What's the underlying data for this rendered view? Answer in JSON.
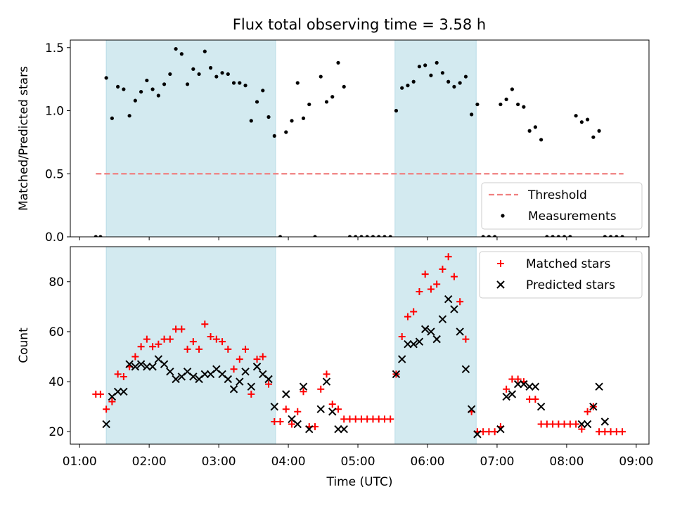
{
  "title": "Flux total observing time = 3.58 h",
  "colors": {
    "shade": "#d3eaf0",
    "shade_edge": "#b9dbe6",
    "threshold": "#f08080",
    "matched": "#ff0000",
    "predicted": "#000000"
  },
  "chart_data": [
    {
      "type": "scatter",
      "ylabel": "Matched/Predicted stars",
      "ylim": [
        0,
        1.56
      ],
      "yticks": [
        "0.0",
        "0.5",
        "1.0",
        "1.5"
      ],
      "xlim": [
        "00:52",
        "09:11"
      ],
      "xticks": [
        "01:00",
        "02:00",
        "03:00",
        "04:00",
        "05:00",
        "06:00",
        "07:00",
        "08:00",
        "09:00"
      ],
      "shaded_intervals": [
        [
          "01:23",
          "03:49"
        ],
        [
          "05:32",
          "06:42"
        ]
      ],
      "threshold": {
        "value": 0.5,
        "x_range": [
          "01:14",
          "08:49"
        ]
      },
      "legend": {
        "position": "lower right",
        "entries": [
          "Threshold",
          "Measurements"
        ]
      },
      "series": [
        {
          "name": "Measurements",
          "points": [
            [
              "01:14",
              0
            ],
            [
              "01:18",
              0
            ],
            [
              "01:23",
              1.26
            ],
            [
              "01:28",
              0.94
            ],
            [
              "01:33",
              1.19
            ],
            [
              "01:38",
              1.17
            ],
            [
              "01:43",
              0.96
            ],
            [
              "01:48",
              1.08
            ],
            [
              "01:53",
              1.15
            ],
            [
              "01:58",
              1.24
            ],
            [
              "02:03",
              1.17
            ],
            [
              "02:08",
              1.12
            ],
            [
              "02:13",
              1.21
            ],
            [
              "02:18",
              1.29
            ],
            [
              "02:23",
              1.49
            ],
            [
              "02:28",
              1.45
            ],
            [
              "02:33",
              1.21
            ],
            [
              "02:38",
              1.33
            ],
            [
              "02:43",
              1.29
            ],
            [
              "02:48",
              1.47
            ],
            [
              "02:53",
              1.34
            ],
            [
              "02:58",
              1.27
            ],
            [
              "03:03",
              1.3
            ],
            [
              "03:08",
              1.29
            ],
            [
              "03:13",
              1.22
            ],
            [
              "03:18",
              1.22
            ],
            [
              "03:23",
              1.2
            ],
            [
              "03:28",
              0.92
            ],
            [
              "03:33",
              1.07
            ],
            [
              "03:38",
              1.16
            ],
            [
              "03:43",
              0.95
            ],
            [
              "03:48",
              0.8
            ],
            [
              "03:53",
              0
            ],
            [
              "03:58",
              0.83
            ],
            [
              "04:03",
              0.92
            ],
            [
              "04:08",
              1.22
            ],
            [
              "04:13",
              0.94
            ],
            [
              "04:18",
              1.05
            ],
            [
              "04:23",
              0
            ],
            [
              "04:28",
              1.27
            ],
            [
              "04:33",
              1.07
            ],
            [
              "04:38",
              1.11
            ],
            [
              "04:43",
              1.38
            ],
            [
              "04:48",
              1.19
            ],
            [
              "04:53",
              0
            ],
            [
              "04:58",
              0
            ],
            [
              "05:03",
              0
            ],
            [
              "05:08",
              0
            ],
            [
              "05:13",
              0
            ],
            [
              "05:18",
              0
            ],
            [
              "05:23",
              0
            ],
            [
              "05:28",
              0
            ],
            [
              "05:33",
              1.0
            ],
            [
              "05:38",
              1.18
            ],
            [
              "05:43",
              1.2
            ],
            [
              "05:48",
              1.23
            ],
            [
              "05:53",
              1.35
            ],
            [
              "05:58",
              1.36
            ],
            [
              "06:03",
              1.28
            ],
            [
              "06:08",
              1.38
            ],
            [
              "06:13",
              1.3
            ],
            [
              "06:18",
              1.23
            ],
            [
              "06:23",
              1.19
            ],
            [
              "06:28",
              1.22
            ],
            [
              "06:33",
              1.27
            ],
            [
              "06:38",
              0.97
            ],
            [
              "06:43",
              1.05
            ],
            [
              "06:48",
              0
            ],
            [
              "06:53",
              0
            ],
            [
              "06:58",
              0
            ],
            [
              "07:03",
              1.05
            ],
            [
              "07:08",
              1.09
            ],
            [
              "07:13",
              1.17
            ],
            [
              "07:18",
              1.05
            ],
            [
              "07:23",
              1.03
            ],
            [
              "07:28",
              0.84
            ],
            [
              "07:33",
              0.87
            ],
            [
              "07:38",
              0.77
            ],
            [
              "07:43",
              0
            ],
            [
              "07:48",
              0
            ],
            [
              "07:53",
              0
            ],
            [
              "07:58",
              0
            ],
            [
              "08:03",
              0
            ],
            [
              "08:08",
              0.96
            ],
            [
              "08:13",
              0.91
            ],
            [
              "08:18",
              0.93
            ],
            [
              "08:23",
              0.79
            ],
            [
              "08:28",
              0.84
            ],
            [
              "08:33",
              0
            ],
            [
              "08:38",
              0
            ],
            [
              "08:43",
              0
            ],
            [
              "08:48",
              0
            ]
          ]
        }
      ]
    },
    {
      "type": "scatter",
      "ylabel": "Count",
      "xlabel": "Time (UTC)",
      "ylim": [
        15,
        94
      ],
      "yticks": [
        "20",
        "40",
        "60",
        "80"
      ],
      "xlim": [
        "00:52",
        "09:11"
      ],
      "xticks": [
        "01:00",
        "02:00",
        "03:00",
        "04:00",
        "05:00",
        "06:00",
        "07:00",
        "08:00",
        "09:00"
      ],
      "shaded_intervals": [
        [
          "01:23",
          "03:49"
        ],
        [
          "05:32",
          "06:42"
        ]
      ],
      "legend": {
        "position": "upper right",
        "entries": [
          "Matched stars",
          "Predicted stars"
        ]
      },
      "series": [
        {
          "name": "Matched stars",
          "marker": "plus",
          "points": [
            [
              "01:14",
              35
            ],
            [
              "01:18",
              35
            ],
            [
              "01:23",
              29
            ],
            [
              "01:28",
              32
            ],
            [
              "01:33",
              43
            ],
            [
              "01:38",
              42
            ],
            [
              "01:43",
              46
            ],
            [
              "01:48",
              50
            ],
            [
              "01:53",
              54
            ],
            [
              "01:58",
              57
            ],
            [
              "02:03",
              54
            ],
            [
              "02:08",
              55
            ],
            [
              "02:13",
              57
            ],
            [
              "02:18",
              57
            ],
            [
              "02:23",
              61
            ],
            [
              "02:28",
              61
            ],
            [
              "02:33",
              53
            ],
            [
              "02:38",
              56
            ],
            [
              "02:43",
              53
            ],
            [
              "02:48",
              63
            ],
            [
              "02:53",
              58
            ],
            [
              "02:58",
              57
            ],
            [
              "03:03",
              56
            ],
            [
              "03:08",
              53
            ],
            [
              "03:13",
              45
            ],
            [
              "03:18",
              49
            ],
            [
              "03:23",
              53
            ],
            [
              "03:28",
              35
            ],
            [
              "03:33",
              49
            ],
            [
              "03:38",
              50
            ],
            [
              "03:43",
              39
            ],
            [
              "03:48",
              24
            ],
            [
              "03:53",
              24
            ],
            [
              "03:58",
              29
            ],
            [
              "04:03",
              23
            ],
            [
              "04:08",
              28
            ],
            [
              "04:13",
              36
            ],
            [
              "04:18",
              22
            ],
            [
              "04:23",
              22
            ],
            [
              "04:28",
              37
            ],
            [
              "04:33",
              43
            ],
            [
              "04:38",
              31
            ],
            [
              "04:43",
              29
            ],
            [
              "04:48",
              25
            ],
            [
              "04:53",
              25
            ],
            [
              "04:58",
              25
            ],
            [
              "05:03",
              25
            ],
            [
              "05:08",
              25
            ],
            [
              "05:13",
              25
            ],
            [
              "05:18",
              25
            ],
            [
              "05:23",
              25
            ],
            [
              "05:28",
              25
            ],
            [
              "05:33",
              43
            ],
            [
              "05:38",
              58
            ],
            [
              "05:43",
              66
            ],
            [
              "05:48",
              68
            ],
            [
              "05:53",
              76
            ],
            [
              "05:58",
              83
            ],
            [
              "06:03",
              77
            ],
            [
              "06:08",
              79
            ],
            [
              "06:13",
              85
            ],
            [
              "06:18",
              90
            ],
            [
              "06:23",
              82
            ],
            [
              "06:28",
              72
            ],
            [
              "06:33",
              57
            ],
            [
              "06:38",
              28
            ],
            [
              "06:43",
              20
            ],
            [
              "06:48",
              20
            ],
            [
              "06:53",
              20
            ],
            [
              "06:58",
              20
            ],
            [
              "07:03",
              22
            ],
            [
              "07:08",
              37
            ],
            [
              "07:13",
              41
            ],
            [
              "07:18",
              41
            ],
            [
              "07:23",
              40
            ],
            [
              "07:28",
              33
            ],
            [
              "07:33",
              33
            ],
            [
              "07:38",
              23
            ],
            [
              "07:43",
              23
            ],
            [
              "07:48",
              23
            ],
            [
              "07:53",
              23
            ],
            [
              "07:58",
              23
            ],
            [
              "08:03",
              23
            ],
            [
              "08:08",
              23
            ],
            [
              "08:13",
              21
            ],
            [
              "08:18",
              28
            ],
            [
              "08:23",
              30
            ],
            [
              "08:28",
              20
            ],
            [
              "08:33",
              20
            ],
            [
              "08:38",
              20
            ],
            [
              "08:43",
              20
            ],
            [
              "08:48",
              20
            ]
          ]
        },
        {
          "name": "Predicted stars",
          "marker": "x",
          "points": [
            [
              "01:23",
              23
            ],
            [
              "01:28",
              34
            ],
            [
              "01:33",
              36
            ],
            [
              "01:38",
              36
            ],
            [
              "01:43",
              47
            ],
            [
              "01:48",
              46
            ],
            [
              "01:53",
              47
            ],
            [
              "01:58",
              46
            ],
            [
              "02:03",
              46
            ],
            [
              "02:08",
              49
            ],
            [
              "02:13",
              47
            ],
            [
              "02:18",
              44
            ],
            [
              "02:23",
              41
            ],
            [
              "02:28",
              42
            ],
            [
              "02:33",
              44
            ],
            [
              "02:38",
              42
            ],
            [
              "02:43",
              41
            ],
            [
              "02:48",
              43
            ],
            [
              "02:53",
              43
            ],
            [
              "02:58",
              45
            ],
            [
              "03:03",
              43
            ],
            [
              "03:08",
              41
            ],
            [
              "03:13",
              37
            ],
            [
              "03:18",
              40
            ],
            [
              "03:23",
              44
            ],
            [
              "03:28",
              38
            ],
            [
              "03:33",
              46
            ],
            [
              "03:38",
              43
            ],
            [
              "03:43",
              41
            ],
            [
              "03:48",
              30
            ],
            [
              "03:58",
              35
            ],
            [
              "04:03",
              25
            ],
            [
              "04:08",
              23
            ],
            [
              "04:13",
              38
            ],
            [
              "04:18",
              21
            ],
            [
              "04:28",
              29
            ],
            [
              "04:33",
              40
            ],
            [
              "04:38",
              28
            ],
            [
              "04:43",
              21
            ],
            [
              "04:48",
              21
            ],
            [
              "05:33",
              43
            ],
            [
              "05:38",
              49
            ],
            [
              "05:43",
              55
            ],
            [
              "05:48",
              55
            ],
            [
              "05:53",
              56
            ],
            [
              "05:58",
              61
            ],
            [
              "06:03",
              60
            ],
            [
              "06:08",
              57
            ],
            [
              "06:13",
              65
            ],
            [
              "06:18",
              73
            ],
            [
              "06:23",
              69
            ],
            [
              "06:28",
              60
            ],
            [
              "06:33",
              45
            ],
            [
              "06:38",
              29
            ],
            [
              "06:43",
              19
            ],
            [
              "07:03",
              21
            ],
            [
              "07:08",
              34
            ],
            [
              "07:13",
              35
            ],
            [
              "07:18",
              39
            ],
            [
              "07:23",
              39
            ],
            [
              "07:28",
              38
            ],
            [
              "07:33",
              38
            ],
            [
              "07:38",
              30
            ],
            [
              "08:13",
              23
            ],
            [
              "08:18",
              23
            ],
            [
              "08:23",
              30
            ],
            [
              "08:28",
              38
            ],
            [
              "08:33",
              24
            ]
          ]
        }
      ]
    }
  ]
}
